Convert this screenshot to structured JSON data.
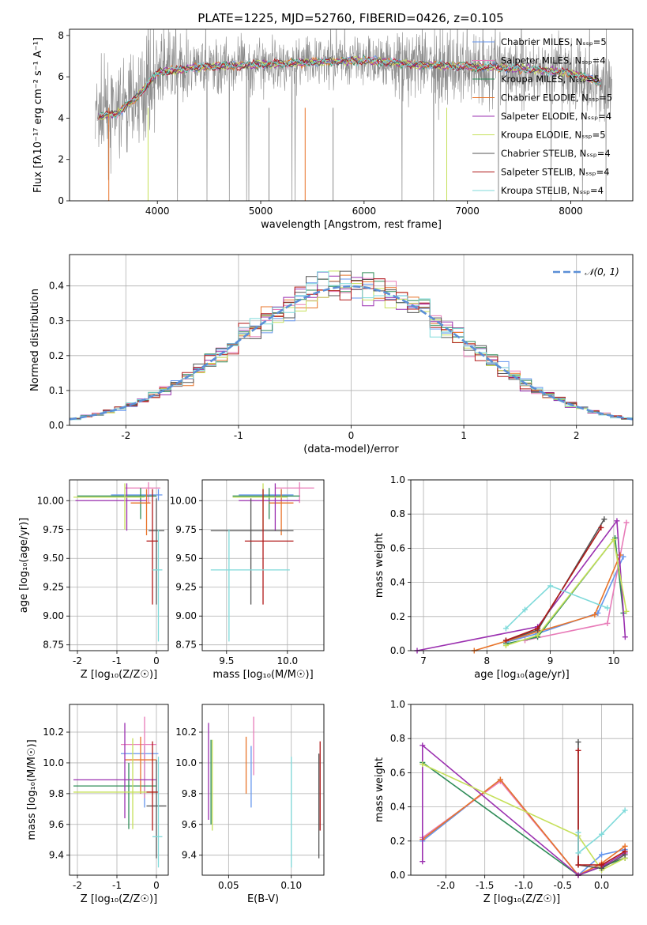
{
  "figure": {
    "title": "PLATE=1225, MJD=52760, FIBERID=0426, z=0.105"
  },
  "colors": {
    "Chabrier MILES": "#6495ed",
    "Salpeter MILES": "#e87bb8",
    "Kroupa MILES": "#2e8b57",
    "Chabrier ELODIE": "#e8742a",
    "Salpeter ELODIE": "#9b30b0",
    "Kroupa ELODIE": "#c6e05a",
    "Chabrier STELIB": "#555555",
    "Salpeter STELIB": "#b01818",
    "Kroupa STELIB": "#7fdada",
    "data": "#8a8a8a",
    "normal": "#5b8fd6"
  },
  "chart_data": [
    {
      "id": "spectrum",
      "type": "line",
      "title": "PLATE=1225, MJD=52760, FIBERID=0426, z=0.105",
      "xlabel": "wavelength [Angstrom, rest frame]",
      "ylabel": "Flux [fλ10⁻¹⁷ erg cm⁻² s⁻¹ A⁻¹]",
      "xlim": [
        3150,
        8600
      ],
      "ylim": [
        0,
        8.3
      ],
      "xticks": [
        4000,
        5000,
        6000,
        7000,
        8000
      ],
      "yticks": [
        0,
        2,
        4,
        6,
        8
      ],
      "legend_position": "right",
      "legend": [
        "Chabrier MILES, N_SSP=5",
        "Salpeter MILES, N_SSP=4",
        "Kroupa MILES, N_SSP=5",
        "Chabrier ELODIE, N_SSP=5",
        "Salpeter ELODIE, N_SSP=4",
        "Kroupa ELODIE, N_SSP=5",
        "Chabrier STELIB, N_SSP=4",
        "Salpeter STELIB, N_SSP=4",
        "Kroupa STELIB, N_SSP=4"
      ],
      "model_continuum": {
        "x": [
          3450,
          3600,
          3800,
          4000,
          4300,
          4500,
          5000,
          5500,
          6000,
          6500,
          7000,
          7500,
          8000,
          8300
        ],
        "y": [
          4.1,
          4.2,
          5.0,
          6.2,
          6.4,
          6.5,
          6.6,
          6.7,
          6.8,
          6.6,
          6.5,
          6.4,
          6.2,
          5.7
        ]
      },
      "data_noise_range": [
        3400,
        8400
      ]
    },
    {
      "id": "residuals",
      "type": "line",
      "xlabel": "(data-model)/error",
      "ylabel": "Normed distribution",
      "xlim": [
        -2.5,
        2.5
      ],
      "ylim": [
        0,
        0.49
      ],
      "xticks": [
        -2,
        -1,
        0,
        1,
        2
      ],
      "yticks": [
        0.0,
        0.1,
        0.2,
        0.3,
        0.4
      ],
      "grid": true,
      "legend_position": "top-right",
      "legend": [
        "𝒩(0, 1)"
      ],
      "hist_bin_width": 0.1,
      "hist_start": -2.5
    },
    {
      "id": "age_vs_z",
      "type": "scatter",
      "xlabel": "Z [log₁₀(Z/Z☉)]",
      "ylabel": "age  [log₁₀(age/yr)]",
      "xlim": [
        -2.2,
        0.3
      ],
      "ylim": [
        8.7,
        10.18
      ],
      "xticks": [
        -2,
        -1,
        0
      ],
      "yticks": [
        8.75,
        9.0,
        9.25,
        9.5,
        9.75,
        10.0
      ],
      "grid": true
    },
    {
      "id": "age_vs_mass",
      "type": "scatter",
      "xlabel": "mass [log₁₀(M/M☉)]",
      "xlim": [
        9.3,
        10.3
      ],
      "ylim": [
        8.7,
        10.18
      ],
      "xticks": [
        9.5,
        10.0
      ],
      "yticks": [
        8.75,
        9.0,
        9.25,
        9.5,
        9.75,
        10.0
      ],
      "grid": true
    },
    {
      "id": "weight_vs_age",
      "type": "line",
      "xlabel": "age  [log₁₀(age/yr)]",
      "ylabel": "mass weight",
      "xlim": [
        6.8,
        10.3
      ],
      "ylim": [
        0,
        1.0
      ],
      "xticks": [
        7,
        8,
        9,
        10
      ],
      "yticks": [
        0.0,
        0.2,
        0.4,
        0.6,
        0.8,
        1.0
      ],
      "grid": true,
      "series": [
        {
          "name": "Chabrier MILES",
          "x": [
            8.3,
            8.8,
            9.75,
            10.15
          ],
          "y": [
            0.05,
            0.1,
            0.22,
            0.55
          ]
        },
        {
          "name": "Salpeter MILES",
          "x": [
            8.6,
            9.9,
            10.2
          ],
          "y": [
            0.06,
            0.16,
            0.75
          ]
        },
        {
          "name": "Kroupa MILES",
          "x": [
            8.3,
            8.8,
            10.02,
            10.15
          ],
          "y": [
            0.04,
            0.08,
            0.66,
            0.22
          ]
        },
        {
          "name": "Chabrier ELODIE",
          "x": [
            7.8,
            9.7,
            10.1
          ],
          "y": [
            0.0,
            0.21,
            0.56
          ]
        },
        {
          "name": "Salpeter ELODIE",
          "x": [
            6.9,
            8.8,
            10.05,
            10.18
          ],
          "y": [
            0.0,
            0.14,
            0.76,
            0.08
          ]
        },
        {
          "name": "Kroupa ELODIE",
          "x": [
            8.3,
            8.8,
            10.0,
            10.2
          ],
          "y": [
            0.03,
            0.09,
            0.65,
            0.23
          ]
        },
        {
          "name": "Chabrier STELIB",
          "x": [
            8.3,
            8.8,
            9.85
          ],
          "y": [
            0.06,
            0.12,
            0.77
          ]
        },
        {
          "name": "Salpeter STELIB",
          "x": [
            8.3,
            8.8,
            9.8
          ],
          "y": [
            0.06,
            0.13,
            0.72
          ]
        },
        {
          "name": "Kroupa STELIB",
          "x": [
            8.3,
            8.6,
            9.0,
            9.9
          ],
          "y": [
            0.13,
            0.24,
            0.38,
            0.25
          ]
        }
      ]
    },
    {
      "id": "mass_vs_z",
      "type": "scatter",
      "xlabel": "Z [log₁₀(Z/Z☉)]",
      "ylabel": "mass [log₁₀(M/M☉)]",
      "xlim": [
        -2.2,
        0.3
      ],
      "ylim": [
        9.27,
        10.38
      ],
      "xticks": [
        -2,
        -1,
        0
      ],
      "yticks": [
        9.4,
        9.6,
        9.8,
        10.0,
        10.2
      ],
      "grid": true
    },
    {
      "id": "mass_vs_ebv",
      "type": "scatter",
      "xlabel": "E(B-V)",
      "xlim": [
        0.029,
        0.126
      ],
      "ylim": [
        9.27,
        10.38
      ],
      "xticks": [
        0.05,
        0.1
      ],
      "yticks": [
        9.4,
        9.6,
        9.8,
        10.0,
        10.2
      ],
      "grid": true
    },
    {
      "id": "weight_vs_z",
      "type": "line",
      "xlabel": "Z [log₁₀(Z/Z☉)]",
      "ylabel": "mass weight",
      "xlim": [
        -2.45,
        0.4
      ],
      "ylim": [
        0,
        1.0
      ],
      "xticks": [
        -2.0,
        -1.5,
        -1.0,
        -0.5,
        0.0
      ],
      "yticks": [
        0.0,
        0.2,
        0.4,
        0.6,
        0.8,
        1.0
      ],
      "grid": true,
      "series": [
        {
          "name": "Chabrier MILES",
          "x": [
            -2.3,
            -1.3,
            -0.3,
            0.0,
            0.3
          ],
          "y": [
            0.2,
            0.56,
            0.0,
            0.12,
            0.15
          ]
        },
        {
          "name": "Salpeter MILES",
          "x": [
            -2.3,
            -1.3,
            -0.3,
            0.0,
            0.3
          ],
          "y": [
            0.22,
            0.55,
            0.0,
            0.06,
            0.1
          ]
        },
        {
          "name": "Kroupa MILES",
          "x": [
            -2.3,
            -0.3,
            0.0,
            0.3
          ],
          "y": [
            0.66,
            0.0,
            0.05,
            0.1
          ]
        },
        {
          "name": "Chabrier ELODIE",
          "x": [
            -2.3,
            -1.3,
            -0.3,
            0.0,
            0.3
          ],
          "y": [
            0.21,
            0.56,
            0.0,
            0.07,
            0.17
          ]
        },
        {
          "name": "Salpeter ELODIE",
          "x": [
            -2.3,
            -2.3,
            -0.3,
            0.0,
            0.3
          ],
          "y": [
            0.08,
            0.76,
            0.0,
            0.05,
            0.13
          ]
        },
        {
          "name": "Kroupa ELODIE",
          "x": [
            -2.3,
            -0.3,
            0.0,
            0.3
          ],
          "y": [
            0.65,
            0.23,
            0.03,
            0.1
          ]
        },
        {
          "name": "Chabrier STELIB",
          "x": [
            -0.3,
            -0.3,
            0.0,
            0.3
          ],
          "y": [
            0.78,
            0.06,
            0.04,
            0.12
          ]
        },
        {
          "name": "Salpeter STELIB",
          "x": [
            -0.3,
            -0.3,
            0.0,
            0.3
          ],
          "y": [
            0.73,
            0.06,
            0.06,
            0.14
          ]
        },
        {
          "name": "Kroupa STELIB",
          "x": [
            -0.3,
            -0.3,
            0.0,
            0.3
          ],
          "y": [
            0.25,
            0.13,
            0.24,
            0.38
          ]
        }
      ]
    }
  ],
  "errorbars": {
    "age_vs_z": [
      {
        "name": "Chabrier MILES",
        "x": 0.05,
        "xerr": [
          1.2,
          0.1
        ],
        "y": 10.05,
        "yerr": [
          0.05,
          0.05
        ]
      },
      {
        "name": "Salpeter MILES",
        "x": -0.2,
        "xerr": [
          0.6,
          0.3
        ],
        "y": 10.11,
        "yerr": [
          0.13,
          0.05
        ]
      },
      {
        "name": "Kroupa MILES",
        "x": -0.4,
        "xerr": [
          1.6,
          0.4
        ],
        "y": 10.04,
        "yerr": [
          0.2,
          0.07
        ]
      },
      {
        "name": "Chabrier ELODIE",
        "x": -0.25,
        "xerr": [
          0.4,
          0.1
        ],
        "y": 9.98,
        "yerr": [
          0.28,
          0.12
        ]
      },
      {
        "name": "Salpeter ELODIE",
        "x": -0.75,
        "xerr": [
          1.3,
          0.5
        ],
        "y": 10.0,
        "yerr": [
          0.26,
          0.15
        ]
      },
      {
        "name": "Kroupa ELODIE",
        "x": -0.8,
        "xerr": [
          1.3,
          0.5
        ],
        "y": 10.03,
        "yerr": [
          0.28,
          0.12
        ]
      },
      {
        "name": "Chabrier STELIB",
        "x": 0.0,
        "xerr": [
          0.2,
          0.2
        ],
        "y": 9.74,
        "yerr": [
          0.64,
          0.28
        ]
      },
      {
        "name": "Salpeter STELIB",
        "x": -0.1,
        "xerr": [
          0.15,
          0.15
        ],
        "y": 9.65,
        "yerr": [
          0.55,
          0.45
        ]
      },
      {
        "name": "Kroupa STELIB",
        "x": 0.05,
        "xerr": [
          0.15,
          0.1
        ],
        "y": 9.4,
        "yerr": [
          0.62,
          0.35
        ]
      }
    ],
    "age_vs_mass": [
      {
        "name": "Chabrier MILES",
        "x": 9.95,
        "xerr": [
          0.35,
          0.1
        ],
        "y": 10.05,
        "yerr": [
          0.05,
          0.05
        ]
      },
      {
        "name": "Salpeter MILES",
        "x": 10.1,
        "xerr": [
          0.2,
          0.12
        ],
        "y": 10.11,
        "yerr": [
          0.13,
          0.05
        ]
      },
      {
        "name": "Kroupa MILES",
        "x": 9.85,
        "xerr": [
          0.3,
          0.25
        ],
        "y": 10.04,
        "yerr": [
          0.2,
          0.07
        ]
      },
      {
        "name": "Chabrier ELODIE",
        "x": 9.95,
        "xerr": [
          0.1,
          0.1
        ],
        "y": 9.98,
        "yerr": [
          0.28,
          0.12
        ]
      },
      {
        "name": "Salpeter ELODIE",
        "x": 9.9,
        "xerr": [
          0.3,
          0.2
        ],
        "y": 10.0,
        "yerr": [
          0.26,
          0.15
        ]
      },
      {
        "name": "Kroupa ELODIE",
        "x": 9.8,
        "xerr": [
          0.25,
          0.2
        ],
        "y": 10.03,
        "yerr": [
          0.28,
          0.12
        ]
      },
      {
        "name": "Chabrier STELIB",
        "x": 9.7,
        "xerr": [
          0.33,
          0.35
        ],
        "y": 9.74,
        "yerr": [
          0.64,
          0.28
        ]
      },
      {
        "name": "Salpeter STELIB",
        "x": 9.8,
        "xerr": [
          0.15,
          0.25
        ],
        "y": 9.65,
        "yerr": [
          0.55,
          0.45
        ]
      },
      {
        "name": "Kroupa STELIB",
        "x": 9.52,
        "xerr": [
          0.15,
          0.5
        ],
        "y": 9.4,
        "yerr": [
          0.62,
          0.35
        ]
      }
    ],
    "mass_vs_z": [
      {
        "name": "Chabrier MILES",
        "x": -0.3,
        "xerr": [
          0.6,
          0.35
        ],
        "y": 10.06,
        "yerr": [
          0.35,
          0.05
        ]
      },
      {
        "name": "Salpeter MILES",
        "x": -0.3,
        "xerr": [
          0.6,
          0.3
        ],
        "y": 10.12,
        "yerr": [
          0.35,
          0.18
        ]
      },
      {
        "name": "Kroupa MILES",
        "x": -0.7,
        "xerr": [
          1.4,
          0.7
        ],
        "y": 9.85,
        "yerr": [
          0.28,
          0.15
        ]
      },
      {
        "name": "Chabrier ELODIE",
        "x": -0.4,
        "xerr": [
          0.4,
          0.4
        ],
        "y": 10.02,
        "yerr": [
          0.22,
          0.15
        ]
      },
      {
        "name": "Salpeter ELODIE",
        "x": -0.8,
        "xerr": [
          1.3,
          0.8
        ],
        "y": 9.89,
        "yerr": [
          0.25,
          0.37
        ]
      },
      {
        "name": "Kroupa ELODIE",
        "x": -0.6,
        "xerr": [
          1.5,
          0.6
        ],
        "y": 9.81,
        "yerr": [
          0.24,
          0.35
        ]
      },
      {
        "name": "Chabrier STELIB",
        "x": 0.0,
        "xerr": [
          0.25,
          0.25
        ],
        "y": 9.72,
        "yerr": [
          0.34,
          0.3
        ]
      },
      {
        "name": "Salpeter STELIB",
        "x": -0.1,
        "xerr": [
          0.15,
          0.15
        ],
        "y": 9.81,
        "yerr": [
          0.25,
          0.33
        ]
      },
      {
        "name": "Kroupa STELIB",
        "x": 0.05,
        "xerr": [
          0.15,
          0.1
        ],
        "y": 9.52,
        "yerr": [
          0.2,
          0.52
        ]
      }
    ],
    "mass_vs_ebv": [
      {
        "name": "Chabrier MILES",
        "x": 0.068,
        "y": 10.06,
        "yerr": [
          0.35,
          0.05
        ]
      },
      {
        "name": "Salpeter MILES",
        "x": 0.07,
        "y": 10.12,
        "yerr": [
          0.2,
          0.18
        ]
      },
      {
        "name": "Kroupa MILES",
        "x": 0.036,
        "y": 9.85,
        "yerr": [
          0.25,
          0.3
        ]
      },
      {
        "name": "Chabrier ELODIE",
        "x": 0.064,
        "y": 10.02,
        "yerr": [
          0.22,
          0.15
        ]
      },
      {
        "name": "Salpeter ELODIE",
        "x": 0.034,
        "y": 9.89,
        "yerr": [
          0.26,
          0.37
        ]
      },
      {
        "name": "Kroupa ELODIE",
        "x": 0.037,
        "y": 9.81,
        "yerr": [
          0.25,
          0.34
        ]
      },
      {
        "name": "Chabrier STELIB",
        "x": 0.122,
        "y": 9.72,
        "yerr": [
          0.34,
          0.34
        ]
      },
      {
        "name": "Salpeter STELIB",
        "x": 0.123,
        "y": 9.81,
        "yerr": [
          0.25,
          0.33
        ]
      },
      {
        "name": "Kroupa STELIB",
        "x": 0.1,
        "y": 9.52,
        "yerr": [
          0.2,
          0.52
        ]
      }
    ]
  }
}
